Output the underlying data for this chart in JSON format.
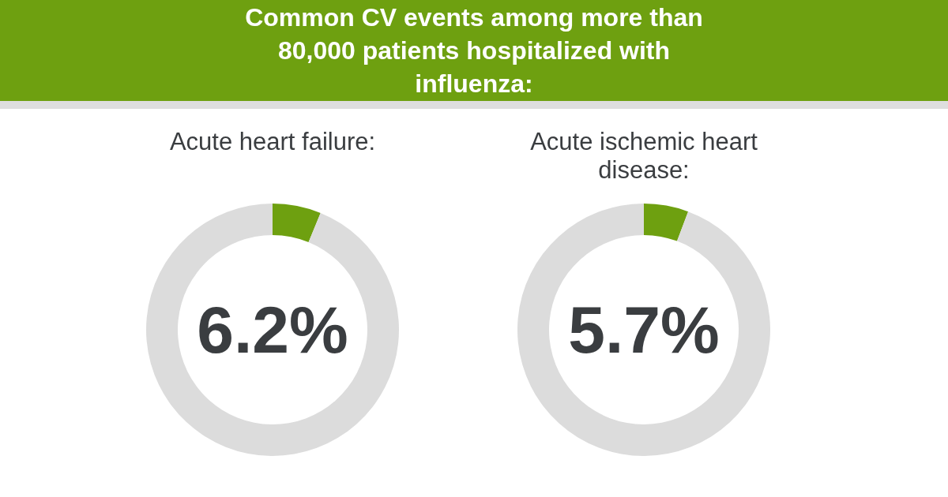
{
  "chart_data": [
    {
      "type": "donut",
      "title": "Common CV events among more than 80,000 patients hospitalized with influenza:",
      "subtitle": "Acute heart failure:",
      "categories": [
        null,
        null
      ],
      "values": [
        6.2,
        93.8
      ],
      "colors": [
        "#6ea010",
        "#dcdcdc"
      ],
      "value_labels": [
        "6.2%",
        null
      ],
      "legend": false
    },
    {
      "type": "donut",
      "subtitle": "Acute ischemic heart disease:",
      "categories": [
        null,
        null
      ],
      "values": [
        5.7,
        94.3
      ],
      "colors": [
        "#6ea010",
        "#dcdcdc"
      ],
      "value_labels": [
        "5.7%",
        null
      ],
      "legend": false
    }
  ]
}
